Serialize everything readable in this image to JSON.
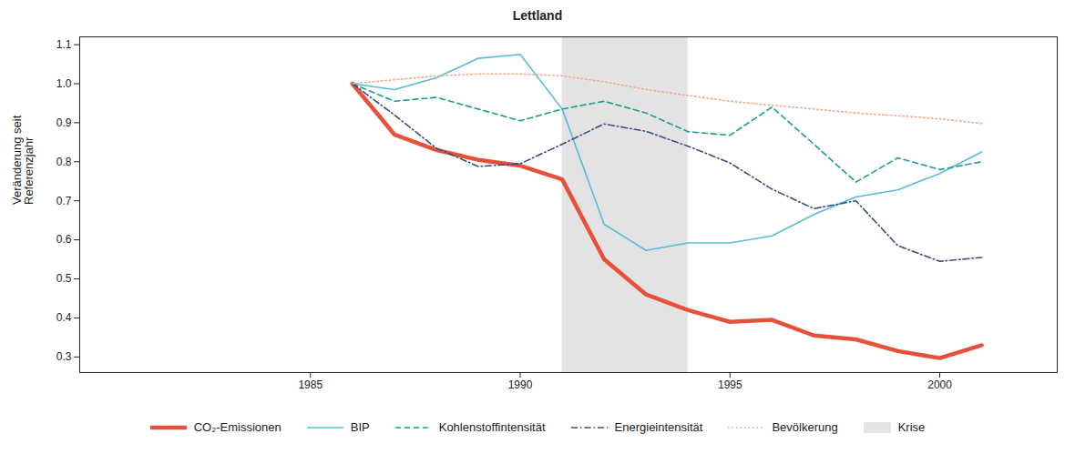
{
  "chart_data": {
    "type": "line",
    "title": "Lettland",
    "y_label": "Veränderung seit Referenzjahr",
    "x": [
      1986,
      1987,
      1988,
      1989,
      1990,
      1991,
      1992,
      1993,
      1994,
      1995,
      1996,
      1997,
      1998,
      1999,
      2000,
      2001
    ],
    "xlim": [
      1979.5,
      2002.8
    ],
    "xticks": [
      1985,
      1990,
      1995,
      2000
    ],
    "ylim": [
      0.26,
      1.12
    ],
    "yticks": [
      0.3,
      0.4,
      0.5,
      0.6,
      0.7,
      0.8,
      0.9,
      {
        "value": 1,
        "label": "1.0"
      },
      1.1
    ],
    "grid": false,
    "legend": "bottom",
    "series": [
      {
        "name": "CO₂-Emissionen",
        "color": "#e8503a",
        "line_style": "solid",
        "values": [
          1.0,
          0.87,
          0.83,
          0.805,
          0.79,
          0.755,
          0.55,
          0.46,
          0.42,
          0.39,
          0.395,
          0.355,
          0.345,
          0.315,
          0.297,
          0.33
        ]
      },
      {
        "name": "BIP",
        "color": "#56bcd9",
        "line_style": "solid",
        "values": [
          1.0,
          0.985,
          1.015,
          1.065,
          1.075,
          0.935,
          0.64,
          0.573,
          0.592,
          0.592,
          0.61,
          0.665,
          0.71,
          0.728,
          0.77,
          0.825
        ]
      },
      {
        "name": "Kohlenstoffintensität",
        "color": "#1a9e8c",
        "line_style": "dashed",
        "values": [
          1.0,
          0.955,
          0.965,
          0.935,
          0.905,
          0.935,
          0.955,
          0.925,
          0.877,
          0.868,
          0.94,
          0.845,
          0.748,
          0.81,
          0.78,
          0.8
        ]
      },
      {
        "name": "Energieintensität",
        "color": "#3b4f7d",
        "line_style": "dashdot",
        "values": [
          1.0,
          0.92,
          0.835,
          0.788,
          0.795,
          0.845,
          0.897,
          0.878,
          0.84,
          0.797,
          0.73,
          0.68,
          0.7,
          0.585,
          0.545,
          0.555
        ]
      },
      {
        "name": "Bevölkerung",
        "color": "#f4a58a",
        "line_style": "dotted",
        "values": [
          1.0,
          1.01,
          1.02,
          1.025,
          1.025,
          1.02,
          1.005,
          0.985,
          0.97,
          0.955,
          0.945,
          0.935,
          0.925,
          0.918,
          0.91,
          0.898
        ]
      }
    ],
    "crisis": {
      "name": "Krise",
      "start": 1991,
      "end": 1994,
      "color": "#e3e3e3"
    }
  }
}
